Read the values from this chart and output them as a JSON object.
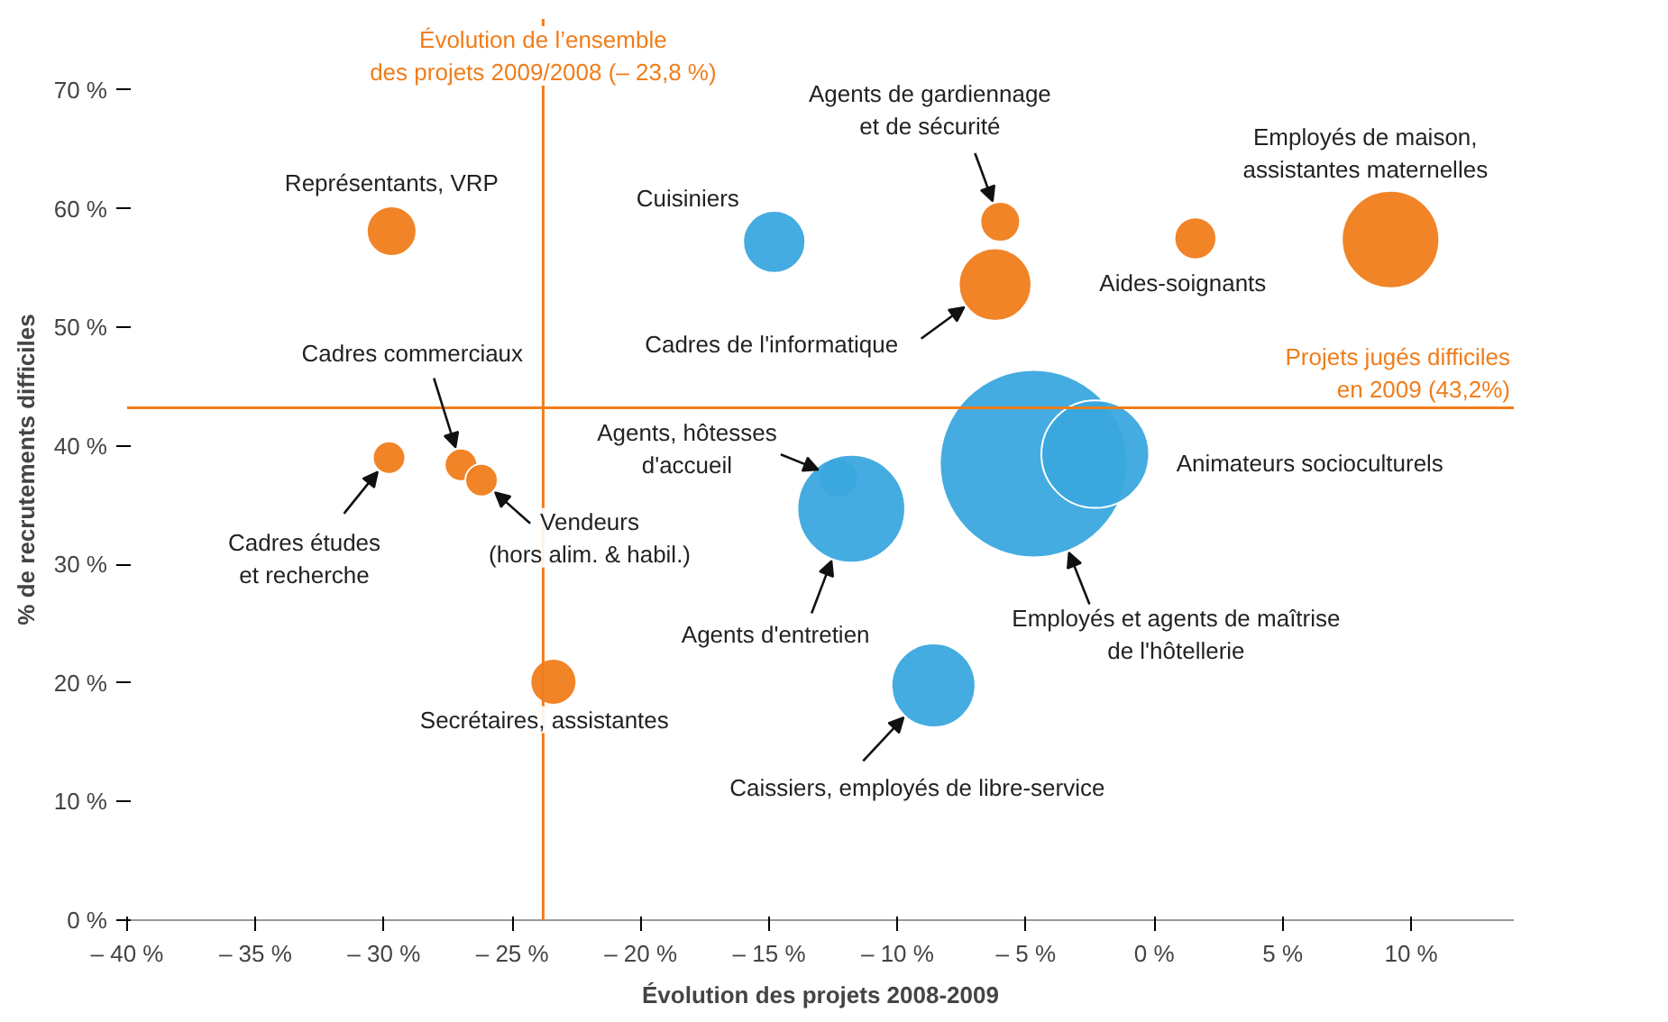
{
  "chart_data": {
    "type": "bubble",
    "xlabel": "Évolution des projets 2008-2009",
    "ylabel": "% de recrutements difficiles",
    "xlim": [
      -40,
      14
    ],
    "ylim": [
      0,
      76
    ],
    "xticks": [
      {
        "value": -40,
        "label": "– 40 %"
      },
      {
        "value": -35,
        "label": "– 35 %"
      },
      {
        "value": -30,
        "label": "– 30 %"
      },
      {
        "value": -25,
        "label": "– 25 %"
      },
      {
        "value": -20,
        "label": "– 20 %"
      },
      {
        "value": -15,
        "label": "– 15 %"
      },
      {
        "value": -10,
        "label": "– 10 %"
      },
      {
        "value": -5,
        "label": "– 5 %"
      },
      {
        "value": 0,
        "label": "0 %"
      },
      {
        "value": 5,
        "label": "5 %"
      },
      {
        "value": 10,
        "label": "10 %"
      }
    ],
    "yticks": [
      {
        "value": 0,
        "label": "0 %"
      },
      {
        "value": 10,
        "label": "10 %"
      },
      {
        "value": 20,
        "label": "20 %"
      },
      {
        "value": 30,
        "label": "30 %"
      },
      {
        "value": 40,
        "label": "40 %"
      },
      {
        "value": 50,
        "label": "50 %"
      },
      {
        "value": 60,
        "label": "60 %"
      },
      {
        "value": 70,
        "label": "70 %"
      }
    ],
    "grid": false,
    "ref_lines": [
      {
        "axis": "x",
        "value": -23.8,
        "label": "Évolution de l’ensemble\ndes projets 2009/2008 (– 23,8 %)",
        "color": "#f07d1b"
      },
      {
        "axis": "y",
        "value": 43.2,
        "label": "Projets jugés difficiles\nen 2009 (43,2%)",
        "color": "#f07d1b"
      }
    ],
    "series": [
      {
        "name": "Représentants, VRP",
        "color": "#f07d1b",
        "x": [
          -29.7
        ],
        "values": [
          58.1
        ],
        "sizes": [
          0.07
        ]
      },
      {
        "name": "Cuisiniers",
        "color": "#3aa8de",
        "x": [
          -14.8
        ],
        "values": [
          57.2
        ],
        "sizes": [
          0.11
        ]
      },
      {
        "name": "Agents de gardiennage\net de sécurité",
        "color": "#f07d1b",
        "x": [
          -6.0
        ],
        "values": [
          58.9
        ],
        "sizes": [
          0.045
        ]
      },
      {
        "name": "Cadres de l'informatique",
        "color": "#f07d1b",
        "x": [
          -6.2
        ],
        "values": [
          53.6
        ],
        "sizes": [
          0.15
        ]
      },
      {
        "name": "Aides-soignants",
        "color": "#f07d1b",
        "x": [
          1.6
        ],
        "values": [
          57.5
        ],
        "sizes": [
          0.05
        ]
      },
      {
        "name": "Employés de maison,\nassistantes maternelles",
        "color": "#f07d1b",
        "x": [
          9.2
        ],
        "values": [
          57.4
        ],
        "sizes": [
          0.27
        ]
      },
      {
        "name": "Cadres études\net recherche",
        "color": "#f07d1b",
        "x": [
          -29.8
        ],
        "values": [
          39.0
        ],
        "sizes": [
          0.03
        ]
      },
      {
        "name": "Cadres commerciaux",
        "color": "#f07d1b",
        "x": [
          -27.0
        ],
        "values": [
          38.4
        ],
        "sizes": [
          0.03
        ]
      },
      {
        "name": "Vendeurs\n(hors alim. & habil.)",
        "color": "#f07d1b",
        "x": [
          -26.2
        ],
        "values": [
          37.1
        ],
        "sizes": [
          0.03
        ]
      },
      {
        "name": "Secrétaires, assistantes",
        "color": "#f07d1b",
        "x": [
          -23.4
        ],
        "values": [
          20.1
        ],
        "sizes": [
          0.06
        ]
      },
      {
        "name": "Agents, hôtesses\nd'accueil",
        "color": "#3aa8de",
        "x": [
          -12.3
        ],
        "values": [
          37.3
        ],
        "sizes": [
          0.045
        ]
      },
      {
        "name": "Agents d'entretien",
        "color": "#3aa8de",
        "x": [
          -11.8
        ],
        "values": [
          34.7
        ],
        "sizes": [
          0.33
        ]
      },
      {
        "name": "Employés et agents de maîtrise\nde l'hôtellerie",
        "color": "#3aa8de",
        "x": [
          -4.7
        ],
        "values": [
          38.5
        ],
        "sizes": [
          1
        ]
      },
      {
        "name": "Animateurs socioculturels",
        "color": "#3aa8de",
        "x": [
          -2.3
        ],
        "values": [
          39.3
        ],
        "sizes": [
          0.33
        ]
      },
      {
        "name": "Caissiers, employés de libre-service",
        "color": "#3aa8de",
        "x": [
          -8.6
        ],
        "values": [
          19.8
        ],
        "sizes": [
          0.2
        ]
      }
    ]
  }
}
